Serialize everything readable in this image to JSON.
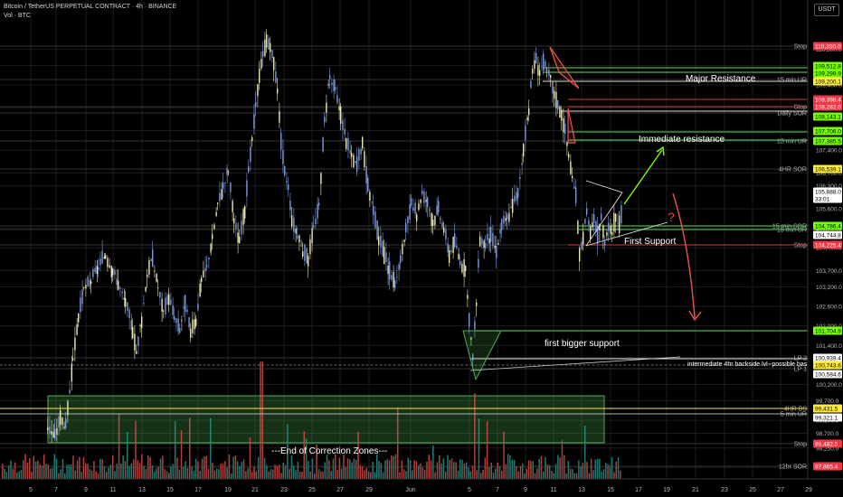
{
  "header": {
    "title": "Bitcoin / TetherUS PERPETUAL CONTRACT · 4h · BINANCE",
    "volume_label": "Vol · BTC"
  },
  "currency_button": "USDT",
  "colors": {
    "bg": "#000000",
    "green": "#26a69a",
    "red": "#ef5350",
    "pink": "#f23645",
    "bright_green": "#76ff03",
    "yellow": "#ffeb3b",
    "grid": "#1c1c1c",
    "axis_text": "#b2b5be"
  },
  "chart_data": {
    "type": "candlestick",
    "symbol": "BTCUSDT.P",
    "timeframe": "4h",
    "exchange": "BINANCE",
    "ylim": [
      97300,
      110900
    ],
    "y_ticks": [
      110500,
      110000,
      109400,
      108700,
      108000,
      107400,
      106700,
      106300,
      105600,
      105000,
      104400,
      103700,
      103200,
      102600,
      102000,
      101400,
      100800,
      100200,
      99700,
      99100,
      98700,
      98250,
      97650
    ],
    "x_ticks": [
      {
        "label": "5",
        "pos": 34
      },
      {
        "label": "7",
        "pos": 62
      },
      {
        "label": "9",
        "pos": 95
      },
      {
        "label": "11",
        "pos": 125
      },
      {
        "label": "13",
        "pos": 157
      },
      {
        "label": "15",
        "pos": 188
      },
      {
        "label": "17",
        "pos": 219
      },
      {
        "label": "19",
        "pos": 252
      },
      {
        "label": "21",
        "pos": 282
      },
      {
        "label": "23",
        "pos": 314
      },
      {
        "label": "25",
        "pos": 345
      },
      {
        "label": "27",
        "pos": 376
      },
      {
        "label": "29",
        "pos": 408
      },
      {
        "label": "Jun",
        "pos": 454
      },
      {
        "label": "5",
        "pos": 519
      },
      {
        "label": "7",
        "pos": 550
      },
      {
        "label": "9",
        "pos": 581
      },
      {
        "label": "11",
        "pos": 612
      },
      {
        "label": "13",
        "pos": 643
      },
      {
        "label": "15",
        "pos": 675
      },
      {
        "label": "17",
        "pos": 706
      },
      {
        "label": "19",
        "pos": 737
      },
      {
        "label": "21",
        "pos": 769
      },
      {
        "label": "23",
        "pos": 801
      },
      {
        "label": "25",
        "pos": 832
      },
      {
        "label": "27",
        "pos": 863
      },
      {
        "label": "29",
        "pos": 894
      }
    ],
    "price_path": [
      [
        52,
        98900
      ],
      [
        60,
        98600
      ],
      [
        66,
        99200
      ],
      [
        72,
        98900
      ],
      [
        80,
        100900
      ],
      [
        86,
        102300
      ],
      [
        92,
        103100
      ],
      [
        100,
        103400
      ],
      [
        108,
        103800
      ],
      [
        116,
        104200
      ],
      [
        124,
        103700
      ],
      [
        130,
        103300
      ],
      [
        138,
        102700
      ],
      [
        146,
        101900
      ],
      [
        150,
        101200
      ],
      [
        156,
        102200
      ],
      [
        162,
        103600
      ],
      [
        168,
        104100
      ],
      [
        174,
        103200
      ],
      [
        180,
        102400
      ],
      [
        186,
        102900
      ],
      [
        192,
        102300
      ],
      [
        198,
        101900
      ],
      [
        204,
        102700
      ],
      [
        210,
        101800
      ],
      [
        216,
        102200
      ],
      [
        222,
        103400
      ],
      [
        228,
        103800
      ],
      [
        234,
        104700
      ],
      [
        240,
        105700
      ],
      [
        246,
        106300
      ],
      [
        252,
        106800
      ],
      [
        258,
        105200
      ],
      [
        264,
        104600
      ],
      [
        270,
        105600
      ],
      [
        274,
        106700
      ],
      [
        278,
        107700
      ],
      [
        282,
        108700
      ],
      [
        286,
        109700
      ],
      [
        290,
        110300
      ],
      [
        294,
        110800
      ],
      [
        298,
        110500
      ],
      [
        302,
        110100
      ],
      [
        306,
        109300
      ],
      [
        310,
        107700
      ],
      [
        314,
        106700
      ],
      [
        318,
        106300
      ],
      [
        322,
        105300
      ],
      [
        328,
        104800
      ],
      [
        334,
        104300
      ],
      [
        340,
        104100
      ],
      [
        346,
        105000
      ],
      [
        352,
        105700
      ],
      [
        358,
        108300
      ],
      [
        364,
        109700
      ],
      [
        370,
        109200
      ],
      [
        376,
        108500
      ],
      [
        382,
        107700
      ],
      [
        388,
        107200
      ],
      [
        394,
        106900
      ],
      [
        400,
        107600
      ],
      [
        406,
        106300
      ],
      [
        412,
        105600
      ],
      [
        418,
        104700
      ],
      [
        424,
        104200
      ],
      [
        430,
        103700
      ],
      [
        436,
        103300
      ],
      [
        442,
        104000
      ],
      [
        448,
        104900
      ],
      [
        454,
        105700
      ],
      [
        460,
        105400
      ],
      [
        466,
        106100
      ],
      [
        472,
        105800
      ],
      [
        478,
        105200
      ],
      [
        484,
        105600
      ],
      [
        490,
        105000
      ],
      [
        496,
        104200
      ],
      [
        502,
        104600
      ],
      [
        508,
        104000
      ],
      [
        514,
        103700
      ],
      [
        518,
        102100
      ],
      [
        522,
        101100
      ],
      [
        526,
        102700
      ],
      [
        530,
        104700
      ],
      [
        536,
        104500
      ],
      [
        542,
        104800
      ],
      [
        548,
        104300
      ],
      [
        554,
        105100
      ],
      [
        560,
        105300
      ],
      [
        566,
        105700
      ],
      [
        572,
        106100
      ],
      [
        578,
        107400
      ],
      [
        584,
        108700
      ],
      [
        588,
        109800
      ],
      [
        592,
        110200
      ],
      [
        596,
        109800
      ],
      [
        600,
        110100
      ],
      [
        604,
        109800
      ],
      [
        608,
        109600
      ],
      [
        612,
        109100
      ],
      [
        616,
        108800
      ],
      [
        620,
        108500
      ],
      [
        624,
        108000
      ],
      [
        628,
        107200
      ],
      [
        632,
        106500
      ],
      [
        636,
        106000
      ],
      [
        640,
        104200
      ],
      [
        644,
        104800
      ],
      [
        648,
        105400
      ],
      [
        652,
        104900
      ],
      [
        656,
        105200
      ],
      [
        660,
        104800
      ],
      [
        664,
        105300
      ],
      [
        668,
        104600
      ],
      [
        672,
        105100
      ],
      [
        676,
        104900
      ],
      [
        680,
        105400
      ],
      [
        684,
        105100
      ],
      [
        688,
        105700
      ]
    ],
    "levels": [
      {
        "label": "Stop",
        "price": 110350,
        "y": 51
      },
      {
        "label": "15 min UR",
        "price": 109512.8,
        "y": 88
      },
      {
        "label": "Stop",
        "price": 108282,
        "y": 118
      },
      {
        "label": "Daily SOR",
        "price": 108143.1,
        "y": 125
      },
      {
        "label": "15 min UR",
        "price": 107706,
        "y": 156
      },
      {
        "label": "4HR SOR",
        "price": 106539.1,
        "y": 187
      },
      {
        "label": "15 min SOR",
        "price": 104786.4,
        "y": 250
      },
      {
        "label": "15 min UR",
        "price": 104744.8,
        "y": 254
      },
      {
        "label": "Stop",
        "price": 104225.4,
        "y": 271
      },
      {
        "label": "LP 2",
        "price": 100939.4,
        "y": 396
      },
      {
        "label": "LP 1",
        "price": 100584.6,
        "y": 408
      },
      {
        "label": "4HR BS",
        "price": 99431.5,
        "y": 452
      },
      {
        "label": "5 min UR",
        "price": 99321.1,
        "y": 458
      },
      {
        "label": "Stop",
        "price": 98482,
        "y": 491
      },
      {
        "label": "12hr SOR",
        "price": 97865.4,
        "y": 516
      }
    ],
    "price_labels": [
      {
        "text": "110,350.0",
        "y": 51,
        "color": "#f23645"
      },
      {
        "text": "109,512.8",
        "y": 73,
        "color": "#76ff03"
      },
      {
        "text": "109,299.9",
        "y": 81,
        "color": "#76ff03"
      },
      {
        "text": "109,200.1",
        "y": 90,
        "color": "#ffeb3b"
      },
      {
        "text": "108,398.4",
        "y": 110,
        "color": "#f23645"
      },
      {
        "text": "108,282.0",
        "y": 118,
        "color": "#f23645"
      },
      {
        "text": "108,143.1",
        "y": 129,
        "color": "#76ff03"
      },
      {
        "text": "107,706.0",
        "y": 145,
        "color": "#76ff03"
      },
      {
        "text": "107,385.5",
        "y": 156,
        "color": "#76ff03"
      },
      {
        "text": "106,539.1",
        "y": 187,
        "color": "#ffeb3b"
      },
      {
        "text": "105,888.0",
        "y": 212,
        "color": "#ffffff"
      },
      {
        "text": "33:01",
        "y": 220,
        "color": "#ffffff"
      },
      {
        "text": "104,786.4",
        "y": 250,
        "color": "#76ff03"
      },
      {
        "text": "104,744.8",
        "y": 260,
        "color": "#ffffff"
      },
      {
        "text": "104,225.4",
        "y": 271,
        "color": "#f23645"
      },
      {
        "text": "101,704.9",
        "y": 366,
        "color": "#76ff03"
      },
      {
        "text": "100,939.4",
        "y": 396,
        "color": "#ffffff"
      },
      {
        "text": "100,743.6",
        "y": 404,
        "color": "#ffeb3b"
      },
      {
        "text": "100,584.6",
        "y": 414,
        "color": "#ffffff"
      },
      {
        "text": "99,431.5",
        "y": 452,
        "color": "#ffeb3b"
      },
      {
        "text": "99,321.1",
        "y": 462,
        "color": "#ffffff"
      },
      {
        "text": "98,482.0",
        "y": 491,
        "color": "#f23645"
      },
      {
        "text": "97,865.4",
        "y": 516,
        "color": "#f23645"
      }
    ],
    "annotations": [
      {
        "text": "Major Resistance",
        "x": 758,
        "y": 90
      },
      {
        "text": "Immediate resistance",
        "x": 706,
        "y": 157
      },
      {
        "text": "First Support",
        "x": 690,
        "y": 270
      },
      {
        "text": "first bigger support",
        "x": 602,
        "y": 383
      },
      {
        "text": "intermediate 4hr backside lvl--possible base",
        "x": 760,
        "y": 405
      },
      {
        "text": "---End of Correction Zones---",
        "x": 300,
        "y": 502
      },
      {
        "text": "?",
        "x": 738,
        "y": 245
      }
    ]
  }
}
